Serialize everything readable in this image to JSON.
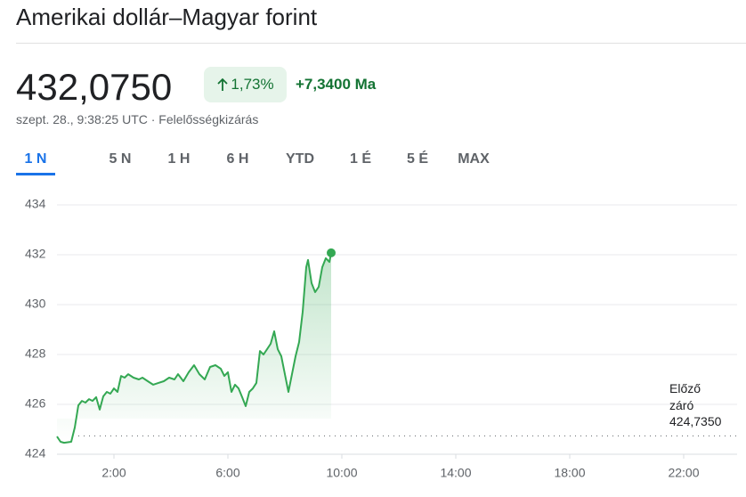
{
  "title": "Amerikai dollár–Magyar forint",
  "price": "432,0750",
  "change_pct": "1,73%",
  "change_abs": "+7,3400 Ma",
  "timestamp": "szept. 28., 9:38:25 UTC · Felelősségkizárás",
  "tabs": [
    "1 N",
    "5 N",
    "1 H",
    "6 H",
    "YTD",
    "1 É",
    "5 É",
    "MAX"
  ],
  "chart_data": {
    "type": "line",
    "color": "#34a853",
    "x": [
      0,
      0.125,
      0.25,
      0.5,
      0.625,
      0.75,
      0.875,
      1,
      1.125,
      1.25,
      1.375,
      1.5,
      1.625,
      1.75,
      1.875,
      2,
      2.125,
      2.25,
      2.375,
      2.5,
      2.688,
      2.875,
      3,
      3.188,
      3.375,
      3.563,
      3.75,
      3.938,
      4.125,
      4.25,
      4.438,
      4.625,
      4.813,
      5,
      5.188,
      5.375,
      5.563,
      5.75,
      5.875,
      6,
      6.125,
      6.25,
      6.375,
      6.5,
      6.625,
      6.75,
      6.875,
      7,
      7.125,
      7.25,
      7.375,
      7.5,
      7.625,
      7.75,
      7.875,
      8,
      8.125,
      8.25,
      8.375,
      8.5,
      8.625,
      8.75,
      8.813,
      8.938,
      9.063,
      9.188,
      9.313,
      9.438,
      9.5625,
      9.625
    ],
    "values": [
      424.71,
      424.5,
      424.46,
      424.5,
      425.07,
      425.96,
      426.14,
      426.07,
      426.21,
      426.14,
      426.29,
      425.79,
      426.32,
      426.5,
      426.43,
      426.64,
      426.5,
      427.14,
      427.07,
      427.21,
      427.07,
      427.0,
      427.07,
      426.93,
      426.79,
      426.86,
      426.93,
      427.07,
      427.0,
      427.21,
      426.93,
      427.29,
      427.57,
      427.21,
      427.0,
      427.5,
      427.57,
      427.43,
      427.14,
      427.29,
      426.5,
      426.79,
      426.64,
      426.29,
      425.93,
      426.5,
      426.64,
      426.86,
      428.14,
      428.0,
      428.21,
      428.43,
      428.93,
      428.21,
      427.93,
      427.21,
      426.5,
      427.21,
      427.93,
      428.5,
      429.71,
      431.5,
      431.79,
      430.86,
      430.5,
      430.71,
      431.5,
      431.86,
      431.71,
      432.075
    ],
    "xlim": [
      0,
      24
    ],
    "xticks": [
      {
        "value": 2,
        "label": "2:00"
      },
      {
        "value": 6,
        "label": "6:00"
      },
      {
        "value": 10,
        "label": "10:00"
      },
      {
        "value": 14,
        "label": "14:00"
      },
      {
        "value": 18,
        "label": "18:00"
      },
      {
        "value": 22,
        "label": "22:00"
      }
    ],
    "ylim": [
      424,
      434
    ],
    "yticks": [
      424,
      426,
      428,
      430,
      432,
      434
    ],
    "grid": true,
    "previous_close_label": "Előző záró",
    "previous_close": {
      "value": 424.735,
      "label": "424,7350"
    }
  }
}
